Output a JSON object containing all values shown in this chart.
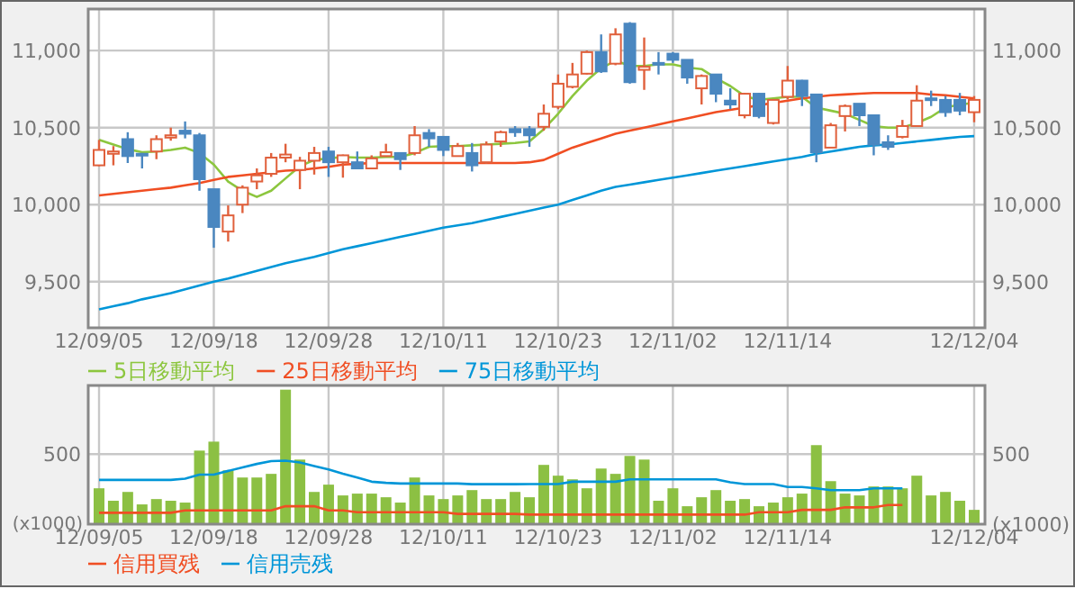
{
  "chart_data": [
    {
      "type": "candlestick",
      "categories": [
        "12/09/05",
        null,
        null,
        null,
        null,
        null,
        null,
        null,
        "12/09/18",
        null,
        null,
        null,
        null,
        null,
        null,
        null,
        "12/09/28",
        null,
        null,
        null,
        null,
        null,
        null,
        null,
        "12/10/11",
        null,
        null,
        null,
        null,
        null,
        null,
        null,
        "12/10/23",
        null,
        null,
        null,
        null,
        null,
        null,
        null,
        "12/11/02",
        null,
        null,
        null,
        null,
        null,
        null,
        null,
        "12/11/14",
        null,
        null,
        null,
        null,
        null,
        null,
        null,
        null,
        null,
        null,
        null,
        null,
        "12/12/04"
      ],
      "ohlc": [
        [
          10255,
          10420,
          10250,
          10355
        ],
        [
          10330,
          10380,
          10255,
          10345
        ],
        [
          10425,
          10470,
          10270,
          10315
        ],
        [
          10330,
          10335,
          10235,
          10320
        ],
        [
          10345,
          10450,
          10295,
          10425
        ],
        [
          10435,
          10500,
          10415,
          10450
        ],
        [
          10480,
          10540,
          10430,
          10460
        ],
        [
          10450,
          10465,
          10090,
          10165
        ],
        [
          10100,
          10100,
          9720,
          9855
        ],
        [
          9825,
          9995,
          9760,
          9930
        ],
        [
          10000,
          10125,
          9945,
          10110
        ],
        [
          10150,
          10235,
          10100,
          10190
        ],
        [
          10200,
          10335,
          10180,
          10305
        ],
        [
          10305,
          10395,
          10275,
          10325
        ],
        [
          10225,
          10310,
          10100,
          10285
        ],
        [
          10285,
          10375,
          10195,
          10335
        ],
        [
          10345,
          10375,
          10180,
          10275
        ],
        [
          10275,
          10325,
          10175,
          10320
        ],
        [
          10275,
          10345,
          10230,
          10235
        ],
        [
          10235,
          10320,
          10230,
          10300
        ],
        [
          10315,
          10395,
          10310,
          10340
        ],
        [
          10335,
          10340,
          10225,
          10295
        ],
        [
          10335,
          10510,
          10320,
          10450
        ],
        [
          10465,
          10490,
          10375,
          10430
        ],
        [
          10440,
          10440,
          10315,
          10355
        ],
        [
          10315,
          10400,
          10315,
          10380
        ],
        [
          10335,
          10400,
          10215,
          10255
        ],
        [
          10275,
          10410,
          10265,
          10390
        ],
        [
          10410,
          10480,
          10375,
          10470
        ],
        [
          10490,
          10510,
          10440,
          10470
        ],
        [
          10490,
          10510,
          10375,
          10450
        ],
        [
          10505,
          10650,
          10480,
          10590
        ],
        [
          10635,
          10845,
          10620,
          10785
        ],
        [
          10765,
          10920,
          10755,
          10845
        ],
        [
          10850,
          11000,
          10845,
          10990
        ],
        [
          10990,
          11105,
          10855,
          10865
        ],
        [
          10915,
          11145,
          10905,
          11105
        ],
        [
          11175,
          11185,
          10785,
          10795
        ],
        [
          10875,
          11085,
          10745,
          10895
        ],
        [
          10920,
          10990,
          10845,
          10910
        ],
        [
          10980,
          10990,
          10920,
          10940
        ],
        [
          10940,
          10940,
          10785,
          10825
        ],
        [
          10755,
          10845,
          10650,
          10835
        ],
        [
          10845,
          10845,
          10665,
          10720
        ],
        [
          10675,
          10755,
          10620,
          10650
        ],
        [
          10580,
          10725,
          10560,
          10720
        ],
        [
          10720,
          10725,
          10560,
          10575
        ],
        [
          10530,
          10685,
          10520,
          10680
        ],
        [
          10700,
          10900,
          10685,
          10805
        ],
        [
          10805,
          10810,
          10640,
          10705
        ],
        [
          10715,
          10715,
          10275,
          10340
        ],
        [
          10370,
          10530,
          10370,
          10515
        ],
        [
          10575,
          10650,
          10475,
          10640
        ],
        [
          10655,
          10655,
          10510,
          10580
        ],
        [
          10580,
          10580,
          10320,
          10390
        ],
        [
          10405,
          10450,
          10355,
          10375
        ],
        [
          10440,
          10550,
          10430,
          10510
        ],
        [
          10510,
          10775,
          10510,
          10675
        ],
        [
          10690,
          10740,
          10640,
          10680
        ],
        [
          10680,
          10705,
          10570,
          10600
        ],
        [
          10680,
          10725,
          10580,
          10610
        ],
        [
          10600,
          10705,
          10535,
          10680
        ]
      ],
      "series": [
        {
          "type": "line",
          "name": "5日移動平均",
          "color": "#8cc63e",
          "values": [
            10420,
            10390,
            10360,
            10340,
            10345,
            10355,
            10370,
            10335,
            10260,
            10150,
            10090,
            10050,
            10090,
            10170,
            10250,
            10290,
            10300,
            10310,
            10305,
            10305,
            10310,
            10310,
            10335,
            10375,
            10380,
            10380,
            10385,
            10390,
            10395,
            10400,
            10410,
            10490,
            10590,
            10705,
            10805,
            10885,
            10935,
            10900,
            10900,
            10910,
            10910,
            10890,
            10880,
            10820,
            10770,
            10705,
            10680,
            10690,
            10700,
            10700,
            10630,
            10610,
            10590,
            10550,
            10510,
            10500,
            10500,
            10530,
            10570,
            10630,
            10650,
            10660
          ]
        },
        {
          "type": "line",
          "name": "25日移動平均",
          "color": "#f04e23",
          "values": [
            10060,
            10070,
            10080,
            10090,
            10100,
            10110,
            10125,
            10140,
            10160,
            10180,
            10190,
            10200,
            10210,
            10220,
            10225,
            10235,
            10245,
            10260,
            10265,
            10270,
            10270,
            10270,
            10270,
            10270,
            10270,
            10270,
            10270,
            10270,
            10270,
            10270,
            10275,
            10290,
            10330,
            10370,
            10400,
            10430,
            10460,
            10480,
            10500,
            10520,
            10540,
            10560,
            10580,
            10600,
            10615,
            10630,
            10645,
            10660,
            10675,
            10690,
            10700,
            10710,
            10715,
            10720,
            10725,
            10725,
            10725,
            10725,
            10715,
            10710,
            10700,
            10690
          ]
        },
        {
          "type": "line",
          "name": "75日移動平均",
          "color": "#0096d8",
          "values": [
            9320,
            9340,
            9360,
            9385,
            9405,
            9425,
            9450,
            9475,
            9500,
            9520,
            9545,
            9570,
            9595,
            9620,
            9640,
            9660,
            9685,
            9710,
            9730,
            9750,
            9770,
            9790,
            9810,
            9830,
            9850,
            9865,
            9880,
            9900,
            9920,
            9940,
            9960,
            9980,
            10000,
            10030,
            10060,
            10090,
            10115,
            10130,
            10145,
            10160,
            10175,
            10190,
            10205,
            10220,
            10235,
            10250,
            10265,
            10280,
            10295,
            10310,
            10330,
            10345,
            10360,
            10375,
            10385,
            10390,
            10400,
            10410,
            10420,
            10430,
            10440,
            10445
          ]
        }
      ],
      "ylim": [
        9200,
        11270
      ],
      "yticks": [
        {
          "value": 9500,
          "label": "9,500"
        },
        {
          "value": 10000,
          "label": "10,000"
        },
        {
          "value": 10500,
          "label": "10,500"
        },
        {
          "value": 11000,
          "label": "11,000"
        }
      ],
      "y2lim": [
        9200,
        11270
      ],
      "y2ticks": [
        {
          "value": 9500,
          "label": "9,500"
        },
        {
          "value": 10000,
          "label": "10,000"
        },
        {
          "value": 10500,
          "label": "10,500"
        },
        {
          "value": 11000,
          "label": "11,000"
        }
      ],
      "grid": true,
      "legend": "bottom"
    },
    {
      "type": "bar",
      "categories": [
        "12/09/05",
        null,
        null,
        null,
        null,
        null,
        null,
        null,
        "12/09/18",
        null,
        null,
        null,
        null,
        null,
        null,
        null,
        "12/09/28",
        null,
        null,
        null,
        null,
        null,
        null,
        null,
        "12/10/11",
        null,
        null,
        null,
        null,
        null,
        null,
        null,
        "12/10/23",
        null,
        null,
        null,
        null,
        null,
        null,
        null,
        "12/11/02",
        null,
        null,
        null,
        null,
        null,
        null,
        null,
        "12/11/14",
        null,
        null,
        null,
        null,
        null,
        null,
        null,
        null,
        null,
        null,
        null,
        null,
        "12/12/04"
      ],
      "series": [
        {
          "type": "bar",
          "color": "#8cc043",
          "values": [
            256,
            167,
            230,
            141,
            179,
            167,
            154,
            525,
            589,
            384,
            333,
            333,
            359,
            960,
            461,
            230,
            282,
            205,
            218,
            218,
            192,
            154,
            333,
            205,
            179,
            205,
            243,
            179,
            179,
            230,
            192,
            423,
            346,
            320,
            256,
            397,
            359,
            487,
            461,
            167,
            256,
            128,
            192,
            243,
            167,
            179,
            128,
            154,
            192,
            218,
            564,
            307,
            218,
            205,
            269,
            269,
            256,
            346,
            205,
            230,
            167,
            102
          ]
        },
        {
          "type": "line",
          "name": "信用買残",
          "color": "#f04e23",
          "values": [
            81,
            81,
            81,
            81,
            81,
            81,
            98,
            98,
            98,
            98,
            98,
            98,
            98,
            128,
            128,
            128,
            98,
            98,
            85,
            85,
            85,
            85,
            85,
            85,
            85,
            73,
            73,
            73,
            73,
            73,
            68,
            68,
            68,
            68,
            68,
            68,
            68,
            68,
            68,
            68,
            68,
            68,
            68,
            68,
            68,
            68,
            85,
            85,
            85,
            102,
            102,
            102,
            120,
            120,
            120,
            137,
            137,
            null,
            null,
            null,
            null,
            null
          ]
        },
        {
          "type": "line",
          "name": "信用売残",
          "color": "#0096d8",
          "values": [
            316,
            316,
            316,
            316,
            316,
            316,
            325,
            354,
            354,
            380,
            405,
            430,
            450,
            453,
            440,
            415,
            390,
            360,
            333,
            303,
            295,
            290,
            290,
            290,
            290,
            290,
            285,
            285,
            285,
            285,
            286,
            286,
            286,
            303,
            303,
            303,
            303,
            320,
            320,
            320,
            320,
            320,
            320,
            320,
            299,
            286,
            286,
            286,
            265,
            265,
            256,
            243,
            243,
            243,
            256,
            256,
            256,
            null,
            null,
            null,
            null,
            null
          ]
        }
      ],
      "ylim": [
        0,
        990
      ],
      "yticks": [
        {
          "value": 0,
          "label": null
        },
        500
      ],
      "ylabel": "(x1000)",
      "annotations": [
        "500",
        "(x1000)"
      ],
      "grid": true,
      "legend": "bottom"
    }
  ]
}
